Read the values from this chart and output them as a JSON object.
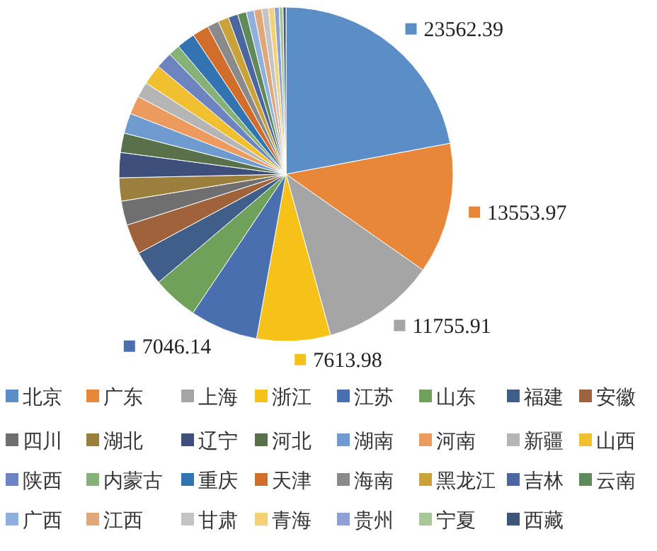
{
  "chart_data": {
    "type": "pie",
    "categories": [
      "北京",
      "广东",
      "上海",
      "浙江",
      "江苏",
      "山东",
      "福建",
      "安徽",
      "四川",
      "湖北",
      "辽宁",
      "河北",
      "湖南",
      "河南",
      "新疆",
      "山西",
      "陕西",
      "内蒙古",
      "重庆",
      "天津",
      "海南",
      "黑龙江",
      "吉林",
      "云南",
      "广西",
      "江西",
      "甘肃",
      "青海",
      "贵州",
      "宁夏",
      "西藏"
    ],
    "values": [
      23562.39,
      13553.97,
      11755.91,
      7613.98,
      7046.14,
      4700,
      3600,
      3100,
      2500,
      2400,
      2600,
      2000,
      2100,
      1900,
      1600,
      2100,
      1700,
      1200,
      1900,
      1700,
      1200,
      1100,
      1000,
      900,
      800,
      800,
      700,
      600,
      500,
      400,
      300
    ],
    "colors": [
      "#5b8ec6",
      "#e8873a",
      "#a5a5a5",
      "#f6c21a",
      "#4a6fae",
      "#6fa15a",
      "#3f5f8a",
      "#a0623a",
      "#6f6f6f",
      "#9b7f3c",
      "#3d4f7a",
      "#58714a",
      "#6f9bd0",
      "#ec9a5e",
      "#b5b5b5",
      "#f0c030",
      "#6d84c0",
      "#86b27a",
      "#3274b2",
      "#d26e2c",
      "#8a8a8a",
      "#c9a23a",
      "#4c66a0",
      "#5f8a5a",
      "#8fb0dc",
      "#e0a87a",
      "#c4c4c4",
      "#f2d274",
      "#8fa0d4",
      "#a8c89a",
      "#3c5578"
    ],
    "value_labels": [
      "23562.39",
      "13553.97",
      "11755.91",
      "7613.98",
      "7046.14",
      null,
      null,
      null,
      null,
      null,
      null,
      null,
      null,
      null,
      null,
      null,
      null,
      null,
      null,
      null,
      null,
      null,
      null,
      null,
      null,
      null,
      null,
      null,
      null,
      null,
      null
    ],
    "legend": "bottom"
  }
}
